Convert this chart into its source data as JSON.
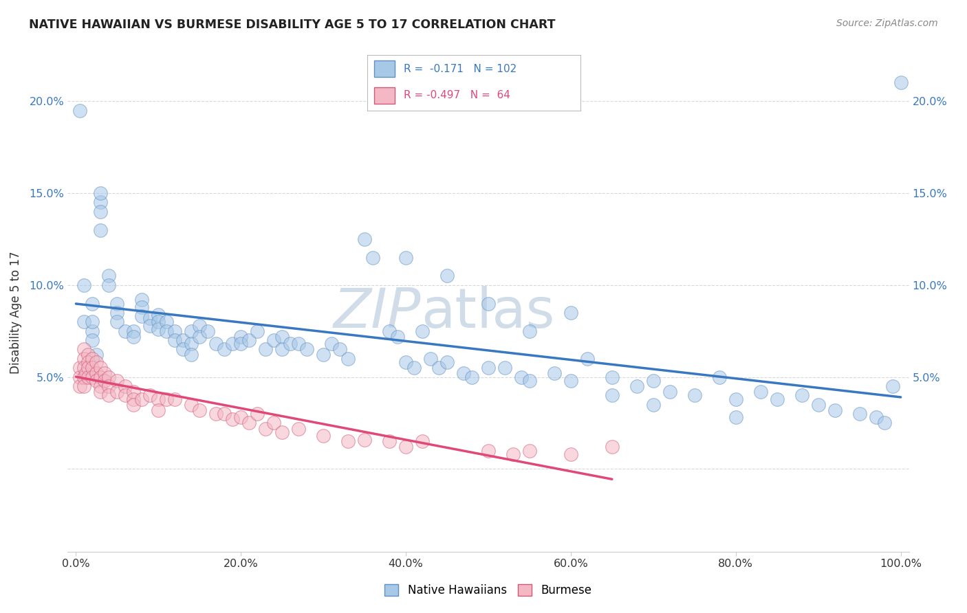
{
  "title": "NATIVE HAWAIIAN VS BURMESE DISABILITY AGE 5 TO 17 CORRELATION CHART",
  "source": "Source: ZipAtlas.com",
  "ylabel": "Disability Age 5 to 17",
  "xlim": [
    -0.02,
    1.02
  ],
  "ylim": [
    -0.04,
    0.22
  ],
  "plot_xlim": [
    0.0,
    1.0
  ],
  "plot_ylim": [
    0.0,
    0.21
  ],
  "xticks": [
    0.0,
    0.2,
    0.4,
    0.6,
    0.8,
    1.0
  ],
  "xtick_labels": [
    "0.0%",
    "20.0%",
    "40.0%",
    "60.0%",
    "80.0%",
    "100.0%"
  ],
  "yticks": [
    0.0,
    0.05,
    0.1,
    0.15,
    0.2
  ],
  "ytick_labels": [
    "",
    "5.0%",
    "10.0%",
    "15.0%",
    "20.0%"
  ],
  "background_color": "#ffffff",
  "grid_color": "#d8d8d8",
  "blue_color": "#a8c8e8",
  "pink_color": "#f4b8c4",
  "line_blue": "#3878c0",
  "line_pink": "#e04878",
  "blue_edge": "#6090c0",
  "pink_edge": "#d05878",
  "tick_color_blue": "#3878c0",
  "text_color": "#333333",
  "source_color": "#888888",
  "watermark_color": "#d0dce8",
  "legend_R_blue": "-0.171",
  "legend_N_blue": "102",
  "legend_R_pink": "-0.497",
  "legend_N_pink": "64",
  "legend_label_blue": "Native Hawaiians",
  "legend_label_pink": "Burmese",
  "blue_x": [
    0.005,
    0.01,
    0.01,
    0.02,
    0.02,
    0.02,
    0.02,
    0.025,
    0.03,
    0.03,
    0.03,
    0.03,
    0.04,
    0.04,
    0.05,
    0.05,
    0.05,
    0.06,
    0.07,
    0.07,
    0.08,
    0.08,
    0.08,
    0.09,
    0.09,
    0.1,
    0.1,
    0.1,
    0.11,
    0.11,
    0.12,
    0.12,
    0.13,
    0.13,
    0.14,
    0.14,
    0.14,
    0.15,
    0.15,
    0.16,
    0.17,
    0.18,
    0.19,
    0.2,
    0.2,
    0.21,
    0.22,
    0.23,
    0.24,
    0.25,
    0.25,
    0.26,
    0.27,
    0.28,
    0.3,
    0.31,
    0.32,
    0.33,
    0.35,
    0.36,
    0.38,
    0.39,
    0.4,
    0.41,
    0.43,
    0.44,
    0.45,
    0.47,
    0.48,
    0.5,
    0.52,
    0.54,
    0.55,
    0.58,
    0.6,
    0.62,
    0.65,
    0.68,
    0.7,
    0.72,
    0.75,
    0.78,
    0.8,
    0.83,
    0.85,
    0.88,
    0.9,
    0.92,
    0.95,
    0.97,
    0.98,
    0.99,
    1.0,
    0.42,
    0.5,
    0.55,
    0.6,
    0.65,
    0.7,
    0.8,
    0.4,
    0.45
  ],
  "blue_y": [
    0.195,
    0.08,
    0.1,
    0.075,
    0.09,
    0.08,
    0.07,
    0.062,
    0.145,
    0.15,
    0.14,
    0.13,
    0.105,
    0.1,
    0.09,
    0.085,
    0.08,
    0.075,
    0.075,
    0.072,
    0.092,
    0.088,
    0.083,
    0.082,
    0.078,
    0.084,
    0.08,
    0.076,
    0.08,
    0.075,
    0.075,
    0.07,
    0.07,
    0.065,
    0.075,
    0.068,
    0.062,
    0.078,
    0.072,
    0.075,
    0.068,
    0.065,
    0.068,
    0.072,
    0.068,
    0.07,
    0.075,
    0.065,
    0.07,
    0.072,
    0.065,
    0.068,
    0.068,
    0.065,
    0.062,
    0.068,
    0.065,
    0.06,
    0.125,
    0.115,
    0.075,
    0.072,
    0.058,
    0.055,
    0.06,
    0.055,
    0.058,
    0.052,
    0.05,
    0.055,
    0.055,
    0.05,
    0.048,
    0.052,
    0.048,
    0.06,
    0.05,
    0.045,
    0.048,
    0.042,
    0.04,
    0.05,
    0.038,
    0.042,
    0.038,
    0.04,
    0.035,
    0.032,
    0.03,
    0.028,
    0.025,
    0.045,
    0.21,
    0.075,
    0.09,
    0.075,
    0.085,
    0.04,
    0.035,
    0.028,
    0.115,
    0.105
  ],
  "pink_x": [
    0.005,
    0.005,
    0.005,
    0.01,
    0.01,
    0.01,
    0.01,
    0.01,
    0.012,
    0.015,
    0.015,
    0.015,
    0.015,
    0.02,
    0.02,
    0.02,
    0.025,
    0.025,
    0.025,
    0.03,
    0.03,
    0.03,
    0.03,
    0.035,
    0.035,
    0.04,
    0.04,
    0.04,
    0.05,
    0.05,
    0.06,
    0.06,
    0.07,
    0.07,
    0.07,
    0.08,
    0.09,
    0.1,
    0.1,
    0.11,
    0.12,
    0.14,
    0.15,
    0.17,
    0.18,
    0.19,
    0.2,
    0.21,
    0.22,
    0.23,
    0.24,
    0.25,
    0.27,
    0.3,
    0.33,
    0.35,
    0.38,
    0.4,
    0.42,
    0.5,
    0.53,
    0.55,
    0.6,
    0.65
  ],
  "pink_y": [
    0.055,
    0.05,
    0.045,
    0.065,
    0.06,
    0.055,
    0.05,
    0.045,
    0.052,
    0.062,
    0.058,
    0.055,
    0.05,
    0.06,
    0.055,
    0.05,
    0.058,
    0.052,
    0.048,
    0.055,
    0.05,
    0.045,
    0.042,
    0.052,
    0.048,
    0.05,
    0.045,
    0.04,
    0.048,
    0.042,
    0.045,
    0.04,
    0.042,
    0.038,
    0.035,
    0.038,
    0.04,
    0.038,
    0.032,
    0.038,
    0.038,
    0.035,
    0.032,
    0.03,
    0.03,
    0.027,
    0.028,
    0.025,
    0.03,
    0.022,
    0.025,
    0.02,
    0.022,
    0.018,
    0.015,
    0.016,
    0.015,
    0.012,
    0.015,
    0.01,
    0.008,
    0.01,
    0.008,
    0.012
  ],
  "marker_size": 200,
  "marker_alpha": 0.55
}
